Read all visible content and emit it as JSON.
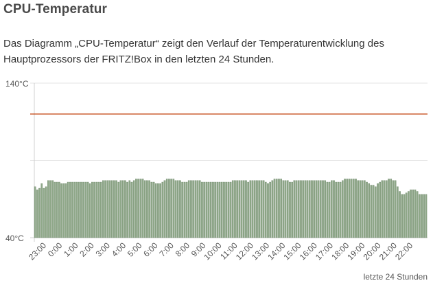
{
  "page": {
    "title": "CPU-Temperatur",
    "description": "Das Diagramm „CPU-Temperatur“ zeigt den Verlauf der Temperaturentwicklung des Hauptprozessors der FRITZ!Box in den letzten 24 Stunden."
  },
  "colors": {
    "bar": "#8fa889",
    "bar_edge": "#5f7a5b",
    "threshold": "#c2410c",
    "grid": "#e3e3e3",
    "axis": "#d0d0d0",
    "text": "#555555"
  },
  "chart_data": {
    "type": "bar",
    "title": "",
    "xlabel": "letzte 24 Stunden",
    "ylabel": "",
    "y_tick_labels": [
      "140°C",
      "40°C"
    ],
    "ylim": [
      40,
      140
    ],
    "grid": true,
    "x_tick_labels": [
      "23:00",
      "0:00",
      "1:00",
      "2:00",
      "3:00",
      "4:00",
      "5:00",
      "6:00",
      "7:00",
      "8:00",
      "9:00",
      "10:00",
      "11:00",
      "12:00",
      "13:00",
      "14:00",
      "15:00",
      "16:00",
      "17:00",
      "18:00",
      "19:00",
      "20:00",
      "21:00",
      "22:00"
    ],
    "threshold": 120,
    "series": [
      {
        "values": [
          73,
          71,
          72,
          75,
          72,
          73,
          77,
          77,
          77,
          76,
          76,
          76,
          75,
          75,
          75,
          76,
          76,
          76,
          76,
          76,
          76,
          76,
          76,
          76,
          76,
          75,
          76,
          76,
          76,
          76,
          76,
          77,
          77,
          77,
          77,
          77,
          77,
          77,
          76,
          77,
          77,
          77,
          76,
          77,
          76,
          77,
          78,
          78,
          78,
          78,
          77,
          77,
          77,
          76,
          76,
          75,
          75,
          75,
          76,
          77,
          78,
          78,
          78,
          78,
          77,
          77,
          77,
          76,
          76,
          76,
          77,
          77,
          77,
          77,
          77,
          77,
          76,
          76,
          76,
          76,
          76,
          76,
          76,
          76,
          76,
          76,
          76,
          76,
          76,
          76,
          77,
          77,
          77,
          77,
          77,
          77,
          77,
          76,
          77,
          77,
          77,
          77,
          77,
          77,
          77,
          76,
          75,
          76,
          77,
          78,
          78,
          78,
          78,
          77,
          77,
          77,
          76,
          76,
          77,
          77,
          77,
          77,
          77,
          77,
          77,
          77,
          77,
          77,
          77,
          77,
          77,
          77,
          77,
          76,
          76,
          77,
          77,
          76,
          76,
          76,
          77,
          78,
          78,
          78,
          78,
          78,
          78,
          77,
          77,
          77,
          77,
          76,
          75,
          74,
          74,
          73,
          75,
          76,
          77,
          77,
          77,
          78,
          78,
          77,
          77,
          73,
          70,
          68,
          68,
          69,
          70,
          71,
          71,
          71,
          70,
          68,
          68,
          68,
          68
        ]
      }
    ]
  }
}
